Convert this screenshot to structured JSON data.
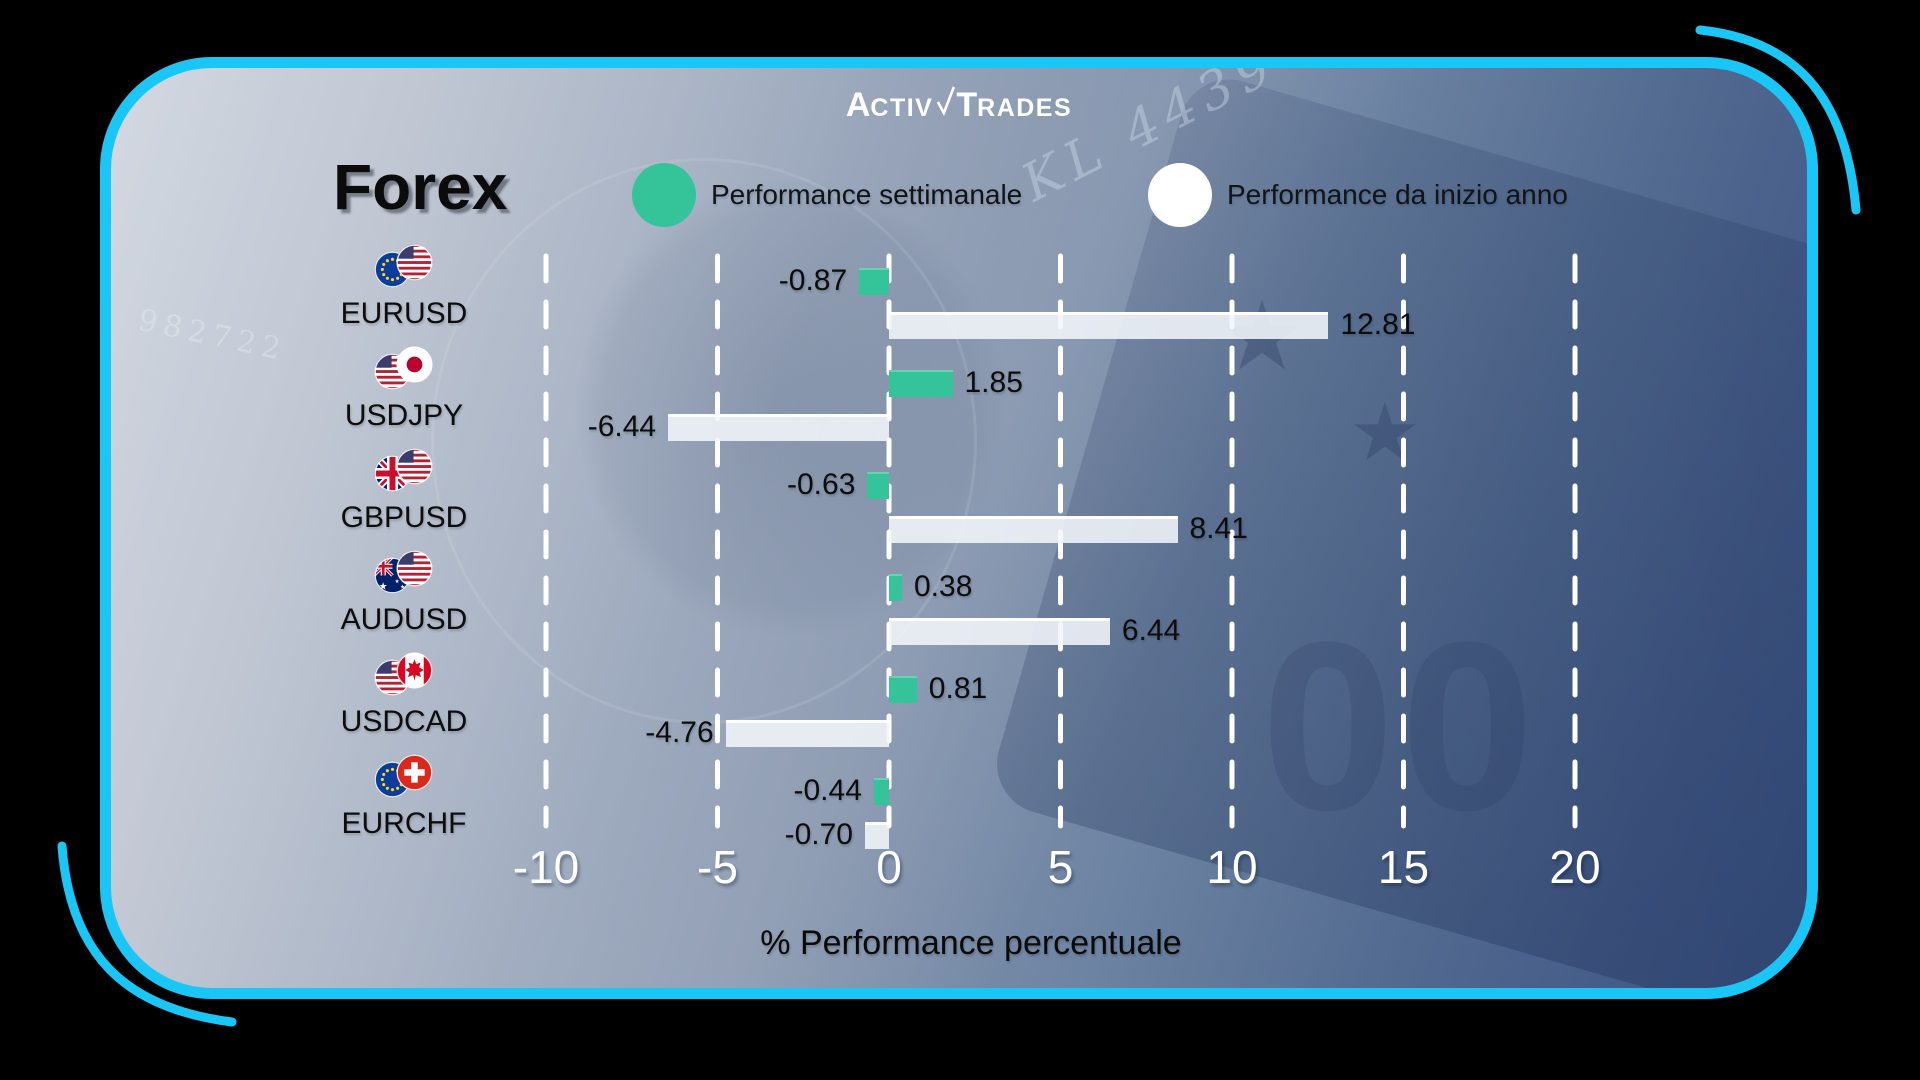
{
  "brand": {
    "name": "ActivTrades",
    "part_a": "A",
    "part_ctiv": "CTIV",
    "part_t": "T",
    "part_rades": "RADES"
  },
  "title": "Forex",
  "legend": [
    {
      "label": "Performance settimanale",
      "color": "#35c49a"
    },
    {
      "label": "Performance da inizio anno",
      "color": "#ffffff"
    }
  ],
  "axis": {
    "label": "% Performance percentuale",
    "ticks": [
      "-10",
      "-5",
      "0",
      "5",
      "10",
      "15",
      "20"
    ],
    "min": -10,
    "max": 20,
    "step": 5
  },
  "rows": [
    {
      "pair": "EURUSD",
      "flags": [
        "eu",
        "us"
      ],
      "weekly": "-0.87",
      "ytd": "12.81"
    },
    {
      "pair": "USDJPY",
      "flags": [
        "us",
        "jp"
      ],
      "weekly": "1.85",
      "ytd": "-6.44"
    },
    {
      "pair": "GBPUSD",
      "flags": [
        "gb",
        "us"
      ],
      "weekly": "-0.63",
      "ytd": "8.41"
    },
    {
      "pair": "AUDUSD",
      "flags": [
        "au",
        "us"
      ],
      "weekly": "0.38",
      "ytd": "6.44"
    },
    {
      "pair": "USDCAD",
      "flags": [
        "us",
        "ca"
      ],
      "weekly": "0.81",
      "ytd": "-4.76"
    },
    {
      "pair": "EURCHF",
      "flags": [
        "eu",
        "ch"
      ],
      "weekly": "-0.44",
      "ytd": "-0.70"
    }
  ],
  "chart_data": {
    "type": "bar",
    "orientation": "horizontal",
    "title": "Forex",
    "categories": [
      "EURUSD",
      "USDJPY",
      "GBPUSD",
      "AUDUSD",
      "USDCAD",
      "EURCHF"
    ],
    "series": [
      {
        "name": "Performance settimanale",
        "color": "#35c49a",
        "values": [
          -0.87,
          1.85,
          -0.63,
          0.38,
          0.81,
          -0.44
        ]
      },
      {
        "name": "Performance da inizio anno",
        "color": "#f2f5f9",
        "values": [
          12.81,
          -6.44,
          8.41,
          6.44,
          -4.76,
          -0.7
        ]
      }
    ],
    "xlabel": "% Performance percentuale",
    "xlim": [
      -10,
      20
    ],
    "xticks": [
      -10,
      -5,
      0,
      5,
      10,
      15,
      20
    ],
    "grid": "vertical-dashed-white",
    "legend_position": "top"
  },
  "colors": {
    "accent_cyan": "#19c6f6",
    "bar_weekly": "#35c49a",
    "bar_ytd": "#f2f5f9",
    "canvas": "#000000"
  }
}
